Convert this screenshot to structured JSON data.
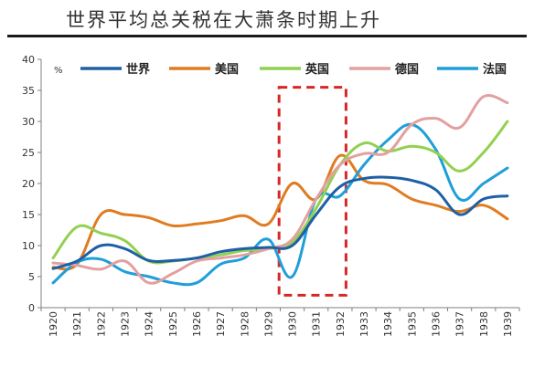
{
  "chart_data": {
    "type": "line",
    "title": "世界平均总关税在大萧条时期上升",
    "unit_label": "%",
    "ylim": [
      0,
      40
    ],
    "yticks": [
      0,
      5,
      10,
      15,
      20,
      25,
      30,
      35,
      40
    ],
    "x": [
      "1920",
      "1921",
      "1922",
      "1923",
      "1924",
      "1925",
      "1926",
      "1927",
      "1928",
      "1929",
      "1930",
      "1931",
      "1932",
      "1933",
      "1934",
      "1935",
      "1936",
      "1937",
      "1938",
      "1939"
    ],
    "legend_position": "top",
    "highlight_box": {
      "x_range": [
        "1929",
        "1932"
      ],
      "y_range": [
        2,
        35.5
      ],
      "color": "#d62728",
      "style": "dashed"
    },
    "series": [
      {
        "name": "世界",
        "color": "#1f5fa6",
        "values": [
          6.3,
          7.5,
          10.0,
          9.5,
          7.6,
          7.6,
          8.0,
          9.0,
          9.5,
          9.7,
          10.0,
          15.0,
          19.5,
          20.8,
          21.0,
          20.5,
          19.0,
          15.0,
          17.5,
          18.0
        ]
      },
      {
        "name": "美国",
        "color": "#e07b20",
        "values": [
          6.5,
          7.0,
          15.0,
          15.0,
          14.5,
          13.2,
          13.5,
          14.0,
          14.8,
          13.5,
          20.0,
          17.5,
          24.5,
          20.5,
          19.8,
          17.5,
          16.5,
          15.5,
          16.5,
          14.3
        ]
      },
      {
        "name": "英国",
        "color": "#92d050",
        "values": [
          8.0,
          13.0,
          12.0,
          10.8,
          7.5,
          7.5,
          8.0,
          8.5,
          9.2,
          9.5,
          10.5,
          16.0,
          23.0,
          26.5,
          25.2,
          26.0,
          25.0,
          22.0,
          25.0,
          30.0
        ]
      },
      {
        "name": "德国",
        "color": "#e3a0a0",
        "values": [
          7.2,
          6.8,
          6.2,
          7.5,
          4.0,
          5.5,
          7.5,
          8.0,
          8.5,
          9.5,
          11.0,
          17.5,
          23.0,
          24.8,
          25.0,
          29.5,
          30.5,
          29.0,
          34.0,
          33.0
        ]
      },
      {
        "name": "法国",
        "color": "#1f9fd9",
        "values": [
          4.0,
          7.3,
          7.8,
          5.8,
          5.0,
          4.0,
          4.0,
          7.0,
          8.0,
          11.0,
          5.0,
          17.5,
          18.0,
          23.0,
          27.0,
          29.5,
          25.5,
          17.5,
          20.0,
          22.5
        ]
      }
    ]
  }
}
